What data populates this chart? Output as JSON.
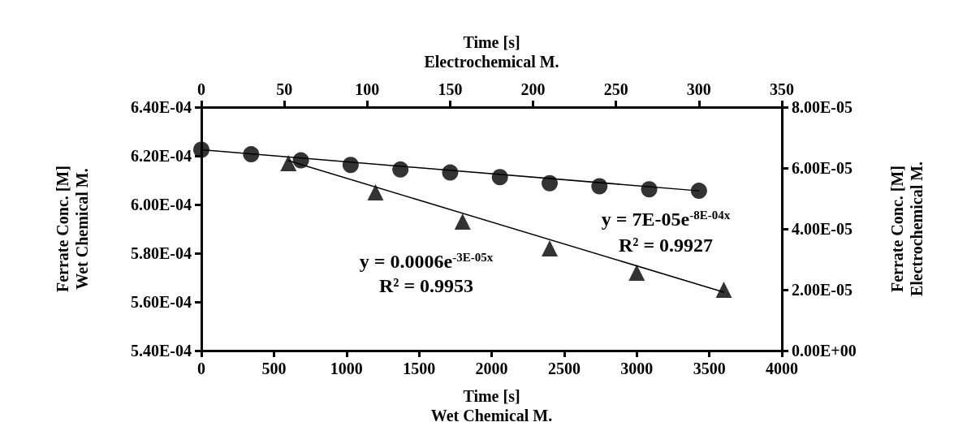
{
  "chart_data": [
    {
      "type": "scatter",
      "xlabel": "Time [s]\nWet Chemical M.",
      "ylabel": "Ferrate Conc. [M]\nWet Chemical M.",
      "xlim": [
        0,
        4000
      ],
      "xticks": [
        0,
        500,
        1000,
        1500,
        2000,
        2500,
        3000,
        3500,
        4000
      ],
      "ylim": [
        0.00054,
        0.00064
      ],
      "yticks": [
        {
          "value": 0.00054,
          "label": "5.40E-04"
        },
        {
          "value": 0.00056,
          "label": "5.60E-04"
        },
        {
          "value": 0.00058,
          "label": "5.80E-04"
        },
        {
          "value": 0.0006,
          "label": "6.00E-04"
        },
        {
          "value": 0.00062,
          "label": "6.20E-04"
        },
        {
          "value": 0.00064,
          "label": "6.40E-04"
        }
      ],
      "grid": false,
      "series": [
        {
          "marker": "triangle",
          "color": "#000000",
          "x": [
            600,
            1200,
            1800,
            2400,
            3000,
            3600
          ],
          "values": [
            0.000617,
            0.000605,
            0.000593,
            0.000582,
            0.000572,
            0.000565
          ]
        },
        {
          "type": "line",
          "marker": "none",
          "color": "#000000",
          "x": [
            600,
            3600
          ],
          "values": [
            0.000618,
            0.000564
          ]
        }
      ],
      "annotations": [
        "y = 0.0006e$^{-3E-05x}$",
        "R² = 0.9953"
      ]
    },
    {
      "type": "scatter",
      "xlabel": "Time [s]\nElectrochemical M.",
      "ylabel": "Ferrate Conc. [M]\nElectrochemical M.",
      "xlim": [
        0,
        350
      ],
      "xticks": [
        0,
        50,
        100,
        150,
        200,
        250,
        300,
        350
      ],
      "ylim": [
        0,
        8e-05
      ],
      "yticks": [
        {
          "value": 0,
          "label": "0.00E+00"
        },
        {
          "value": 2e-05,
          "label": "2.00E-05"
        },
        {
          "value": 4e-05,
          "label": "4.00E-05"
        },
        {
          "value": 6e-05,
          "label": "6.00E-05"
        },
        {
          "value": 8e-05,
          "label": "8.00E-05"
        }
      ],
      "grid": false,
      "series": [
        {
          "marker": "circle",
          "color": "#000000",
          "x": [
            0,
            30,
            60,
            90,
            120,
            150,
            180,
            210,
            240,
            270,
            300
          ],
          "values": [
            6.6e-05,
            6.45e-05,
            6.25e-05,
            6.1e-05,
            5.95e-05,
            5.85e-05,
            5.7e-05,
            5.5e-05,
            5.4e-05,
            5.3e-05,
            5.25e-05
          ]
        },
        {
          "type": "line",
          "marker": "none",
          "color": "#000000",
          "x": [
            0,
            300
          ],
          "values": [
            6.6e-05,
            5.25e-05
          ]
        }
      ],
      "annotations": [
        "y = 7E-05e$^{-8E-04x}$",
        "R² = 0.9927"
      ]
    }
  ]
}
